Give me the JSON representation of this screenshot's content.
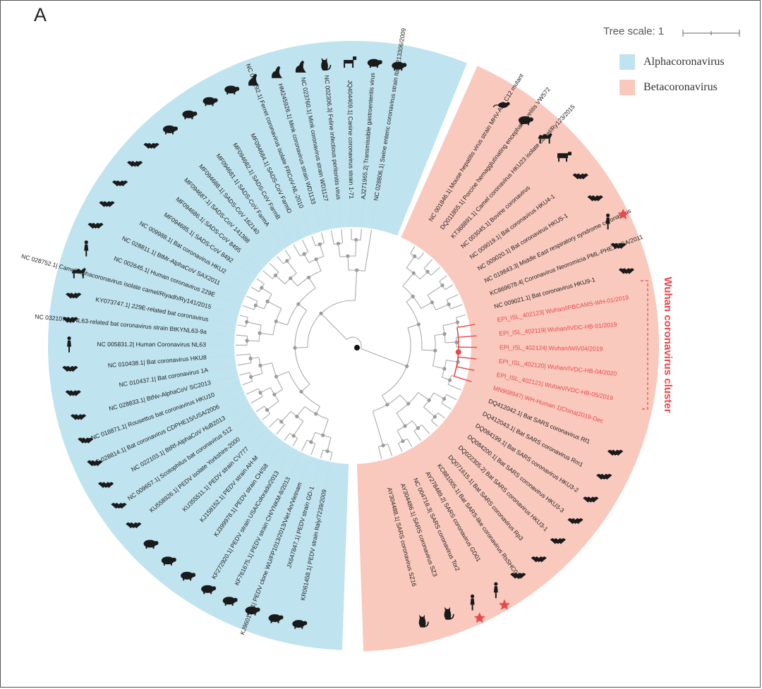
{
  "panel_letter": "A",
  "tree_scale_label": "Tree scale: 1",
  "legend": [
    {
      "label": "Alphacoronavirus",
      "color": "#bfe3ef"
    },
    {
      "label": "Betacoronavirus",
      "color": "#f9c9bd"
    }
  ],
  "cluster_label": "Wuhan coronavirus cluster",
  "colors": {
    "highlight": "#e8474c",
    "label": "#222222",
    "star": "#e8474c",
    "node": "#999999",
    "branch": "#aaaaaa"
  },
  "alpha_taxa": [
    {
      "label": "KR061458.1| PEDV strain Italy/7239/2009",
      "host": "pig-icon"
    },
    {
      "label": "JX647847.1| PEDV strain GD-1",
      "host": "pig-icon"
    },
    {
      "label": "KJ960178.1| PEDV clone WU/FP1013/2013/Viet An/Vietnam",
      "host": "pig-icon"
    },
    {
      "label": "KF761675.1| PEDV strain CH/YNKM-8/2013",
      "host": "pig-icon"
    },
    {
      "label": "KF272920.1| PEDV strain USA/Colorado/2013",
      "host": "pig-icon"
    },
    {
      "label": "KJ399978.1| PEDV strain CH/S8",
      "host": "pig-icon"
    },
    {
      "label": "KJ158152.1| PEDV strain AH-M",
      "host": "pig-icon"
    },
    {
      "label": "KU355511.1| PEDV strain CV777",
      "host": "pig-icon"
    },
    {
      "label": "KU558926.1| PEDV isolate Yorkshire-2000",
      "host": "bat-icon"
    },
    {
      "label": "NC 009657.1| Scotophilus bat coronavirus 512",
      "host": "bat-icon"
    },
    {
      "label": "NC 022103.1| BtRf-AlphaCoV HuB2013",
      "host": "bat-icon"
    },
    {
      "label": "NC 028814.1| Bat coronavirus CDPHE15/USA/2006",
      "host": "bat-icon"
    },
    {
      "label": "NC 018871.1| Rousettus bat coronavirus HKU10",
      "host": "bat-icon"
    },
    {
      "label": "NC 028833.1| BtNv-AlphaCoV SC2013",
      "host": "bat-icon"
    },
    {
      "label": "NC 010437.1| Bat coronavirus 1A",
      "host": "bat-icon"
    },
    {
      "label": "NC 010438.1| Bat coronavirus HKU8",
      "host": "bat-icon"
    },
    {
      "label": "NC 005831.2| Human Coronavirus NL63",
      "host": "human-icon"
    },
    {
      "label": "NC 032107.1| NL63-related bat coronavirus strain BtKYNL63-9a",
      "host": "bat-icon"
    },
    {
      "label": "KY073747.1| 229E-related bat coronavirus",
      "host": "bat-icon"
    },
    {
      "label": "NC 028752.1| Camel alphacoronavirus isolate camel/Riyadh/Ry141/2015",
      "host": "camel-icon"
    },
    {
      "label": "NC 002645.1| Human coronavirus 229E",
      "host": "human-icon"
    },
    {
      "label": "NC 028811.1| BtMr-AlphaCoV SAX2011",
      "host": "bat-icon"
    },
    {
      "label": "NC 009988.1| Bat coronavirus HKU2",
      "host": "bat-icon"
    },
    {
      "label": "MF094685.1| SADS-CoV 8492",
      "host": "bat-icon"
    },
    {
      "label": "MF094686.1| SADS-CoV 8495",
      "host": "bat-icon"
    },
    {
      "label": "MF094687.1| SADS-CoV 141388",
      "host": "bat-icon"
    },
    {
      "label": "MF094688.1| SADS-CoV 162140",
      "host": "pig-icon"
    },
    {
      "label": "MF094681.1| SADS-CoV FarmA",
      "host": "pig-icon"
    },
    {
      "label": "MF094682.1| SADS-CoV FarmB",
      "host": "pig-icon"
    },
    {
      "label": "MF094684.1| SADS-CoV FarmD",
      "host": "pig-icon"
    },
    {
      "label": "NC 030292.1| Ferret coronavirus isolate FRCoV-NL-2010",
      "host": "ferret-icon"
    },
    {
      "label": "HM245926.1| Mink coronavirus strain WD1133",
      "host": "ferret-icon"
    },
    {
      "label": "NC 023760.1| Mink coronavirus strain WD1127",
      "host": "ferret-icon"
    },
    {
      "label": "NC 002306.3| Feline infectious peritonitis virus",
      "host": "cat-icon"
    },
    {
      "label": "JQ404409.1| Canine coronavirus strain 1-71",
      "host": "dog-icon"
    },
    {
      "label": "AJ271965.2| Transmissible gastroenteritis virus",
      "host": "pig-icon"
    },
    {
      "label": "NC 028806.1| Swine enteric coronavirus strain Italy/213306/2009",
      "host": "pig-icon"
    }
  ],
  "beta_taxa": [
    {
      "label": "NC 001846.1| Mouse hepatitis virus strain MHV-A59 C12 mutant",
      "host": "mouse-icon",
      "highlight": false,
      "star": false
    },
    {
      "label": "DQ011855.1| Porcine hemagglutinating encephalomyelitis VW572",
      "host": "pig-icon",
      "highlight": false,
      "star": false
    },
    {
      "label": "KT368891.1| Camel coronavirus HKU23 isolate camel/Ry123/2015",
      "host": "camel-icon",
      "highlight": false,
      "star": false
    },
    {
      "label": "NC 003045.1| Bovine coronavirus",
      "host": "cow-icon",
      "highlight": false,
      "star": false
    },
    {
      "label": "NC 009019.1| Bat coronavirus HKU4-1",
      "host": "bat-icon",
      "highlight": false,
      "star": false
    },
    {
      "label": "NC 009020.1| Bat coronavirus HKU5-1",
      "host": "bat-icon",
      "highlight": false,
      "star": false
    },
    {
      "label": "NC 019843.3| Middle East respiratory syndrome coronavirus",
      "host": "human-icon",
      "highlight": false,
      "star": true
    },
    {
      "label": "KC869678.4| Coronavirus Neoromicia PML-PHE1/RSA/2011",
      "host": "bat-icon",
      "highlight": false,
      "star": false
    },
    {
      "label": "NC 009021.1| Bat coronavirus HKU9-1",
      "host": "bat-icon",
      "highlight": false,
      "star": false
    },
    {
      "label": "EPI_ISL_402123| Wuhan/IPBCAMS-WH-01/2019",
      "host": "",
      "highlight": true,
      "star": false
    },
    {
      "label": "EPI_ISL_402119| Wuhan/IVDC-HB-01/2019",
      "host": "",
      "highlight": true,
      "star": false
    },
    {
      "label": "EPI_ISL_402124| Wuhan/WIV04/2019",
      "host": "",
      "highlight": true,
      "star": false
    },
    {
      "label": "EPI_ISL_402120| Wuhan/IVDC-HB-04/2020",
      "host": "",
      "highlight": true,
      "star": false
    },
    {
      "label": "EPI_ISL_402121| Wuhan/IVDC-HB-05/2019",
      "host": "",
      "highlight": true,
      "star": false
    },
    {
      "label": "MN908947| WH-Human 1|China|2019-Dec",
      "host": "",
      "highlight": true,
      "star": false
    },
    {
      "label": "DQ412042.1| Bat SARS coronavirus Rf1",
      "host": "bat-icon",
      "highlight": false,
      "star": false
    },
    {
      "label": "DQ412043.1| Bat SARS coronavirus Rm1",
      "host": "bat-icon",
      "highlight": false,
      "star": false
    },
    {
      "label": "DQ084199.1| Bat SARS coronavirus HKU3-2",
      "host": "bat-icon",
      "highlight": false,
      "star": false
    },
    {
      "label": "DQ084200.1| Bat SARS coronavirus HKU3-3",
      "host": "bat-icon",
      "highlight": false,
      "star": false
    },
    {
      "label": "DQ022305.2| Bat SARS coronavirus HKU3-1",
      "host": "bat-icon",
      "highlight": false,
      "star": false
    },
    {
      "label": "DQ071615.1| Bat SARS coronavirus Rp3",
      "host": "bat-icon",
      "highlight": false,
      "star": false
    },
    {
      "label": "KC881005.1| Bat SARS-like coronavirus RsSHC014",
      "host": "bat-icon",
      "highlight": false,
      "star": false
    },
    {
      "label": "AY278489.2| SARS coronavirus GD01",
      "host": "human-icon",
      "highlight": false,
      "star": true
    },
    {
      "label": "NC 004718.3| SARS coronavirus Tor2",
      "host": "human-icon",
      "highlight": false,
      "star": true
    },
    {
      "label": "AY304486.1| SARS coronavirus SZ3",
      "host": "cat-icon",
      "highlight": false,
      "star": false
    },
    {
      "label": "AY304488.1| SARS coronavirus SZ16",
      "host": "cat-icon",
      "highlight": false,
      "star": false
    }
  ]
}
